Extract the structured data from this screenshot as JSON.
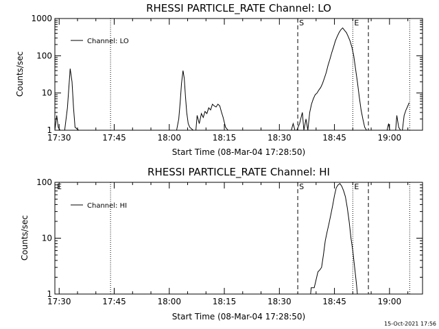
{
  "footer": {
    "date": "15-Oct-2021 17:56"
  },
  "chart_data": [
    {
      "type": "line",
      "title": "RHESSI PARTICLE_RATE Channel: LO",
      "xlabel": "Start Time (08-Mar-04 17:28:50)",
      "ylabel": "Counts/sec",
      "yscale": "log",
      "xlim": [
        "17:28:50",
        "19:09:00"
      ],
      "ylim": [
        1,
        1000
      ],
      "x_ticks": [
        "17:30",
        "17:45",
        "18:00",
        "18:15",
        "18:30",
        "18:45",
        "19:00"
      ],
      "y_ticks": [
        "1",
        "10",
        "100",
        "1000"
      ],
      "legend": "top-left",
      "series": [
        {
          "name": "Channel: LO",
          "x": [
            "17:28:50",
            "17:29:20",
            "17:29:45",
            "17:30:15",
            "17:31:00",
            "17:31:30",
            "17:32:15",
            "17:32:40",
            "17:33:00",
            "17:33:30",
            "17:33:55",
            "17:34:20",
            "17:35:20",
            "17:36:00",
            "18:02:00",
            "18:02:35",
            "18:03:00",
            "18:03:20",
            "18:03:45",
            "18:04:05",
            "18:04:25",
            "18:04:45",
            "18:05:10",
            "18:05:35",
            "18:06:30",
            "18:07:15",
            "18:07:35",
            "18:08:10",
            "18:08:45",
            "18:09:15",
            "18:09:45",
            "18:10:15",
            "18:10:45",
            "18:11:15",
            "18:11:45",
            "18:12:15",
            "18:12:45",
            "18:13:15",
            "18:13:45",
            "18:14:10",
            "18:14:40",
            "18:15:20",
            "18:16:00",
            "18:33:15",
            "18:33:45",
            "18:34:15",
            "18:34:45",
            "18:35:30",
            "18:36:15",
            "18:36:40",
            "18:37:15",
            "18:37:45",
            "18:38:15",
            "18:38:45",
            "18:39:15",
            "18:39:45",
            "18:40:15",
            "18:40:45",
            "18:41:15",
            "18:41:45",
            "18:42:15",
            "18:42:45",
            "18:43:15",
            "18:43:45",
            "18:44:15",
            "18:44:45",
            "18:45:15",
            "18:45:45",
            "18:46:15",
            "18:46:45",
            "18:47:15",
            "18:47:45",
            "18:48:15",
            "18:48:45",
            "18:49:15",
            "18:49:45",
            "18:50:15",
            "18:50:45",
            "18:51:15",
            "18:51:45",
            "18:52:15",
            "18:52:45",
            "18:53:15",
            "18:53:45",
            "18:54:15",
            "18:59:20",
            "18:59:45",
            "19:00:05",
            "19:00:30",
            "19:01:00",
            "19:01:40",
            "19:02:00",
            "19:02:30",
            "19:03:00",
            "19:03:30",
            "19:04:00",
            "19:04:30",
            "19:05:00",
            "19:05:20"
          ],
          "y": [
            1.0,
            2.5,
            1.2,
            1.0,
            1.0,
            1.0,
            4,
            15,
            45,
            20,
            4,
            1.2,
            1.0,
            1.0,
            1.0,
            2,
            6,
            18,
            40,
            25,
            8,
            3,
            1.5,
            1.2,
            1.0,
            1.0,
            2.5,
            1.5,
            2.8,
            2.2,
            3.2,
            2.8,
            4,
            3.5,
            5,
            4.5,
            4.2,
            5,
            4.5,
            3.2,
            2.2,
            1.2,
            1.0,
            1.0,
            1.5,
            1.0,
            1.0,
            1.5,
            3,
            1.0,
            2,
            1.0,
            3,
            5,
            7,
            9,
            10,
            12,
            14,
            18,
            25,
            35,
            55,
            80,
            120,
            170,
            250,
            330,
            420,
            500,
            560,
            480,
            420,
            330,
            250,
            170,
            100,
            45,
            20,
            8,
            3.5,
            2,
            1.2,
            1.0,
            1.0,
            1.0,
            1.5,
            1.0,
            1.0,
            1.0,
            1.0,
            2.5,
            1.2,
            1.0,
            1.0,
            2.5,
            3.5,
            4.5,
            5.5
          ]
        }
      ],
      "markers": [
        {
          "label": "S",
          "time": "18:35:00",
          "style": "dashed"
        },
        {
          "label": "E",
          "time": "18:50:00",
          "style": "dotted"
        },
        {
          "label": "",
          "time": "18:54:15",
          "style": "dashed"
        },
        {
          "label": "",
          "time": "17:44:00",
          "style": "dotted"
        },
        {
          "label": "",
          "time": "19:05:30",
          "style": "dotted"
        }
      ]
    },
    {
      "type": "line",
      "title": "RHESSI PARTICLE_RATE Channel: HI",
      "xlabel": "Start Time (08-Mar-04 17:28:50)",
      "ylabel": "Counts/sec",
      "yscale": "log",
      "xlim": [
        "17:28:50",
        "19:09:00"
      ],
      "ylim": [
        1,
        100
      ],
      "x_ticks": [
        "17:30",
        "17:45",
        "18:00",
        "18:15",
        "18:30",
        "18:45",
        "19:00"
      ],
      "y_ticks": [
        "1",
        "10",
        "100"
      ],
      "legend": "top-left",
      "series": [
        {
          "name": "Channel: HI",
          "x": [
            "18:38:30",
            "18:38:40",
            "18:39:30",
            "18:40:00",
            "18:40:30",
            "18:41:00",
            "18:41:30",
            "18:42:00",
            "18:42:30",
            "18:43:00",
            "18:43:30",
            "18:44:00",
            "18:44:30",
            "18:45:00",
            "18:45:30",
            "18:46:00",
            "18:46:30",
            "18:47:00",
            "18:47:30",
            "18:48:00",
            "18:48:30",
            "18:49:00",
            "18:49:30",
            "18:50:00",
            "18:50:30",
            "18:51:00",
            "18:51:15"
          ],
          "y": [
            1.0,
            1.3,
            1.3,
            1.8,
            2.5,
            2.7,
            3.0,
            5,
            9,
            13,
            18,
            26,
            38,
            58,
            80,
            90,
            95,
            85,
            70,
            55,
            35,
            20,
            10,
            6,
            3,
            1.5,
            1.0
          ]
        }
      ],
      "markers": [
        {
          "label": "S",
          "time": "18:35:00",
          "style": "dashed"
        },
        {
          "label": "E",
          "time": "18:50:00",
          "style": "dotted"
        },
        {
          "label": "",
          "time": "18:54:15",
          "style": "dashed"
        },
        {
          "label": "",
          "time": "17:44:00",
          "style": "dotted"
        },
        {
          "label": "",
          "time": "19:05:30",
          "style": "dotted"
        }
      ],
      "corner_label": "E"
    }
  ]
}
